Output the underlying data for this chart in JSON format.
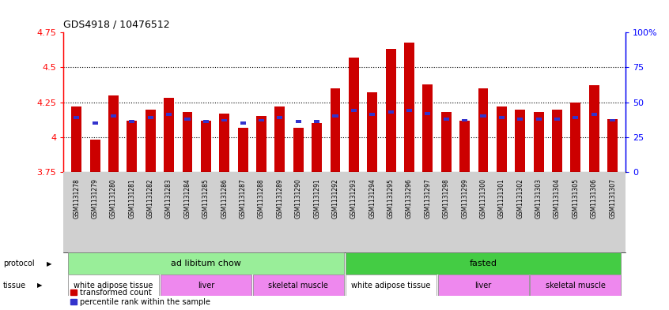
{
  "title": "GDS4918 / 10476512",
  "samples": [
    "GSM1131278",
    "GSM1131279",
    "GSM1131280",
    "GSM1131281",
    "GSM1131282",
    "GSM1131283",
    "GSM1131284",
    "GSM1131285",
    "GSM1131286",
    "GSM1131287",
    "GSM1131288",
    "GSM1131289",
    "GSM1131290",
    "GSM1131291",
    "GSM1131292",
    "GSM1131293",
    "GSM1131294",
    "GSM1131295",
    "GSM1131296",
    "GSM1131297",
    "GSM1131298",
    "GSM1131299",
    "GSM1131300",
    "GSM1131301",
    "GSM1131302",
    "GSM1131303",
    "GSM1131304",
    "GSM1131305",
    "GSM1131306",
    "GSM1131307"
  ],
  "red_values": [
    4.22,
    3.98,
    4.3,
    4.12,
    4.2,
    4.28,
    4.18,
    4.12,
    4.17,
    4.07,
    4.15,
    4.22,
    4.07,
    4.1,
    4.35,
    4.57,
    4.32,
    4.63,
    4.68,
    4.38,
    4.18,
    4.12,
    4.35,
    4.22,
    4.2,
    4.18,
    4.2,
    4.25,
    4.37,
    4.13
  ],
  "blue_values": [
    4.13,
    4.09,
    4.14,
    4.1,
    4.13,
    4.15,
    4.12,
    4.1,
    4.11,
    4.09,
    4.11,
    4.13,
    4.1,
    4.1,
    4.14,
    4.18,
    4.15,
    4.17,
    4.18,
    4.16,
    4.12,
    4.11,
    4.14,
    4.13,
    4.12,
    4.12,
    4.12,
    4.13,
    4.15,
    4.11
  ],
  "ylim": [
    3.75,
    4.75
  ],
  "yticks_left": [
    3.75,
    4.0,
    4.25,
    4.5,
    4.75
  ],
  "ytick_labels_left": [
    "3.75",
    "4",
    "4.25",
    "4.5",
    "4.75"
  ],
  "yticks_right_vals": [
    0,
    25,
    50,
    75,
    100
  ],
  "ytick_labels_right": [
    "0",
    "25",
    "50",
    "75",
    "100%"
  ],
  "gridlines": [
    4.0,
    4.25,
    4.5
  ],
  "bar_color_red": "#cc0000",
  "bar_color_blue": "#3333cc",
  "tick_bg_color": "#d0d0d0",
  "prot_data": [
    {
      "label": "ad libitum chow",
      "start": 0,
      "end": 14,
      "color": "#99ee99"
    },
    {
      "label": "fasted",
      "start": 15,
      "end": 29,
      "color": "#44cc44"
    }
  ],
  "tiss_data": [
    {
      "label": "white adipose tissue",
      "start": 0,
      "end": 4,
      "color": "#ffffff"
    },
    {
      "label": "liver",
      "start": 5,
      "end": 9,
      "color": "#ee88ee"
    },
    {
      "label": "skeletal muscle",
      "start": 10,
      "end": 14,
      "color": "#ee88ee"
    },
    {
      "label": "white adipose tissue",
      "start": 15,
      "end": 19,
      "color": "#ffffff"
    },
    {
      "label": "liver",
      "start": 20,
      "end": 24,
      "color": "#ee88ee"
    },
    {
      "label": "skeletal muscle",
      "start": 25,
      "end": 29,
      "color": "#ee88ee"
    }
  ],
  "bar_width": 0.55
}
